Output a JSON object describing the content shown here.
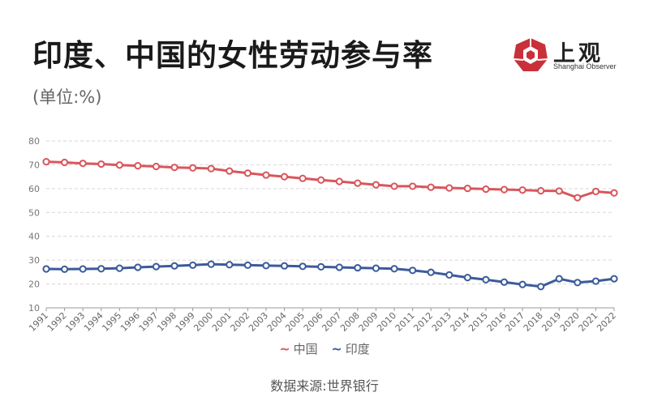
{
  "title": "印度、中国的女性劳动参与率",
  "unit_note": "(单位:%)",
  "logo": {
    "name_cn": "上观",
    "name_en": "Shanghai Observer",
    "icon": "shanghai-observer-logo-icon",
    "color": "#c9303a"
  },
  "source": "数据来源:世界银行",
  "chart_data": {
    "type": "line",
    "x": [
      "1991",
      "1992",
      "1993",
      "1994",
      "1995",
      "1996",
      "1997",
      "1998",
      "1999",
      "2000",
      "2001",
      "2002",
      "2003",
      "2004",
      "2005",
      "2006",
      "2007",
      "2008",
      "2009",
      "2010",
      "2011",
      "2012",
      "2013",
      "2014",
      "2015",
      "2016",
      "2017",
      "2018",
      "2019",
      "2020",
      "2021",
      "2022"
    ],
    "ylim": [
      10,
      80
    ],
    "yticks": [
      10,
      20,
      30,
      40,
      50,
      60,
      70,
      80
    ],
    "grid": true,
    "legend": "bottom",
    "series": [
      {
        "name": "中国",
        "color": "#d9565c",
        "values": [
          71.3,
          71.0,
          70.6,
          70.3,
          69.9,
          69.6,
          69.3,
          68.9,
          68.7,
          68.4,
          67.4,
          66.5,
          65.7,
          65.0,
          64.3,
          63.6,
          63.0,
          62.3,
          61.6,
          61.0,
          61.0,
          60.6,
          60.3,
          60.1,
          59.8,
          59.6,
          59.4,
          59.1,
          59.0,
          56.2,
          58.8,
          58.2
        ]
      },
      {
        "name": "印度",
        "color": "#3b5b9a",
        "values": [
          26.3,
          26.2,
          26.3,
          26.4,
          26.6,
          27.0,
          27.3,
          27.6,
          27.9,
          28.3,
          28.1,
          27.9,
          27.7,
          27.6,
          27.4,
          27.2,
          27.0,
          26.8,
          26.6,
          26.4,
          25.7,
          24.9,
          23.8,
          22.7,
          21.8,
          20.8,
          19.8,
          18.9,
          22.2,
          20.6,
          21.2,
          22.2
        ]
      }
    ]
  }
}
